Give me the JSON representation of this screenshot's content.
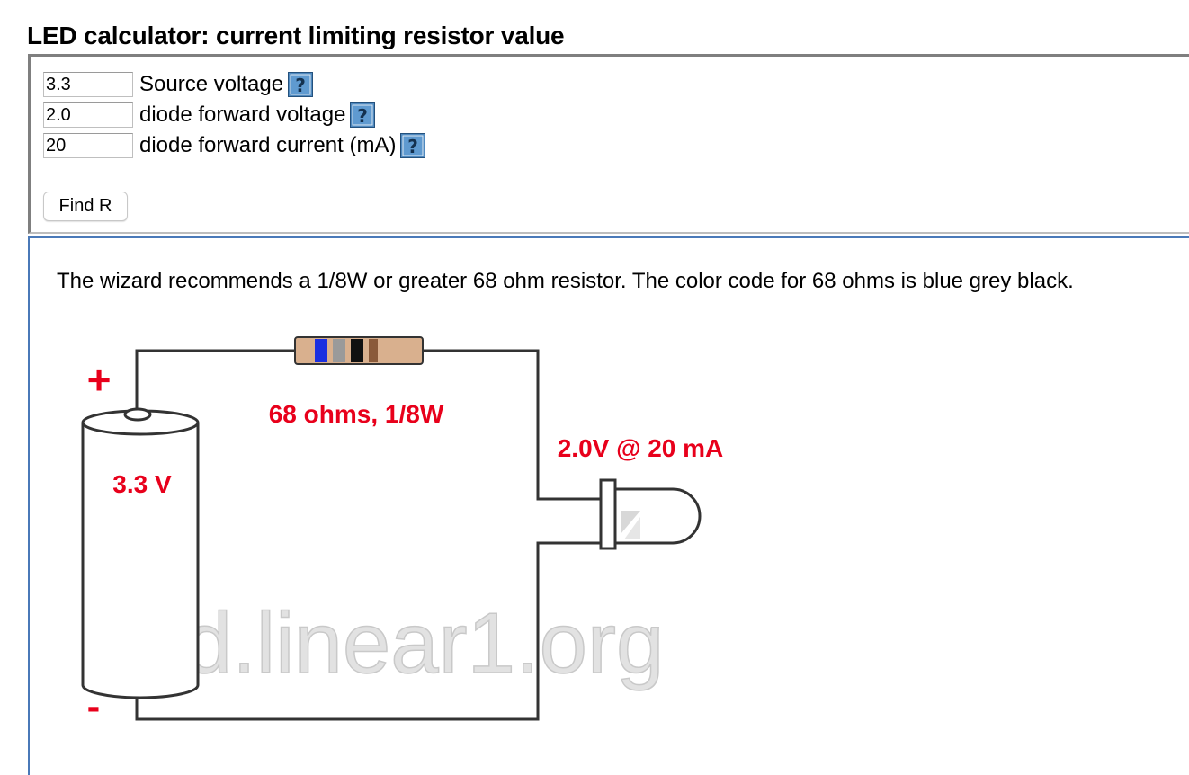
{
  "page": {
    "title": "LED calculator: current limiting resistor value"
  },
  "form": {
    "fields": [
      {
        "value": "3.3",
        "label": "Source voltage"
      },
      {
        "value": "2.0",
        "label": "diode forward voltage"
      },
      {
        "value": "20",
        "label": "diode forward current (mA)"
      }
    ],
    "help_icon": "question-mark-icon",
    "find_button_label": "Find R"
  },
  "result": {
    "text": "The wizard recommends a 1/8W or greater 68 ohm resistor. The color code for 68 ohms is blue grey black."
  },
  "diagram": {
    "plus_sign": "+",
    "minus_sign": "-",
    "battery_voltage": "3.3 V",
    "resistor_label": "68 ohms, 1/8W",
    "led_label": "2.0V @ 20 mA",
    "watermark": "led.linear1.org",
    "resistor_bands": [
      "blue",
      "grey",
      "black"
    ],
    "colors": {
      "label_red": "#e8001b",
      "wire": "#333333",
      "resistor_body": "#d9b08e",
      "band_blue": "#1a2fe0",
      "band_grey": "#9a9a9a",
      "band_black": "#111111",
      "panel_border_blue": "#4a79b8"
    }
  }
}
